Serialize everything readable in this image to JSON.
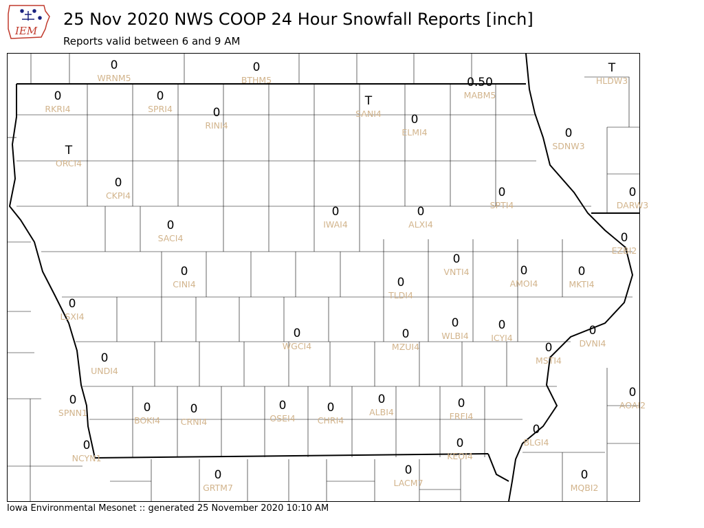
{
  "header": {
    "title": "25 Nov 2020 NWS COOP 24 Hour Snowfall Reports [inch]",
    "subtitle": "Reports valid between 6 and 9 AM"
  },
  "logo": {
    "text": "IEM",
    "icon": "iem-logo-icon"
  },
  "footer": {
    "text": "Iowa Environmental Mesonet :: generated 25 November 2020 10:10 AM"
  },
  "colors": {
    "value_text": "#000000",
    "station_id": "#d2b48c",
    "state_border": "#000000",
    "county_line": "#000000"
  },
  "map": {
    "stations": [
      {
        "id": "WRNM5",
        "value": "0"
      },
      {
        "id": "BTHM5",
        "value": "0"
      },
      {
        "id": "HLDW3",
        "value": "T"
      },
      {
        "id": "MABM5",
        "value": "0.50"
      },
      {
        "id": "RKRI4",
        "value": "0"
      },
      {
        "id": "SPRI4",
        "value": "0"
      },
      {
        "id": "RINI4",
        "value": "0"
      },
      {
        "id": "SANI4",
        "value": "T"
      },
      {
        "id": "ELMI4",
        "value": "0"
      },
      {
        "id": "SDNW3",
        "value": "0"
      },
      {
        "id": "ORCI4",
        "value": "T"
      },
      {
        "id": "CKPI4",
        "value": "0"
      },
      {
        "id": "SPTI4",
        "value": "0"
      },
      {
        "id": "DARW3",
        "value": "0"
      },
      {
        "id": "IWAI4",
        "value": "0"
      },
      {
        "id": "ALXI4",
        "value": "0"
      },
      {
        "id": "SACI4",
        "value": "0"
      },
      {
        "id": "EZBI2",
        "value": "0"
      },
      {
        "id": "VNTI4",
        "value": "0"
      },
      {
        "id": "AMOI4",
        "value": "0"
      },
      {
        "id": "MKTI4",
        "value": "0"
      },
      {
        "id": "CINI4",
        "value": "0"
      },
      {
        "id": "TLDI4",
        "value": "0"
      },
      {
        "id": "LSXI4",
        "value": "0"
      },
      {
        "id": "WLBI4",
        "value": "0"
      },
      {
        "id": "ICYI4",
        "value": "0"
      },
      {
        "id": "WGCI4",
        "value": "0"
      },
      {
        "id": "MZUI4",
        "value": "0"
      },
      {
        "id": "DVNI4",
        "value": "0"
      },
      {
        "id": "MSTI4",
        "value": "0"
      },
      {
        "id": "UNDI4",
        "value": "0"
      },
      {
        "id": "AOAI2",
        "value": "0"
      },
      {
        "id": "SPNN1",
        "value": "0"
      },
      {
        "id": "BOKI4",
        "value": "0"
      },
      {
        "id": "CRNI4",
        "value": "0"
      },
      {
        "id": "OSEI4",
        "value": "0"
      },
      {
        "id": "CHRI4",
        "value": "0"
      },
      {
        "id": "ALBI4",
        "value": "0"
      },
      {
        "id": "FRFI4",
        "value": "0"
      },
      {
        "id": "BLGI4",
        "value": "0"
      },
      {
        "id": "KEOI4",
        "value": "0"
      },
      {
        "id": "NCYN1",
        "value": "0"
      },
      {
        "id": "LACM7",
        "value": "0"
      },
      {
        "id": "GRTM7",
        "value": "0"
      },
      {
        "id": "MQBI2",
        "value": "0"
      }
    ]
  }
}
